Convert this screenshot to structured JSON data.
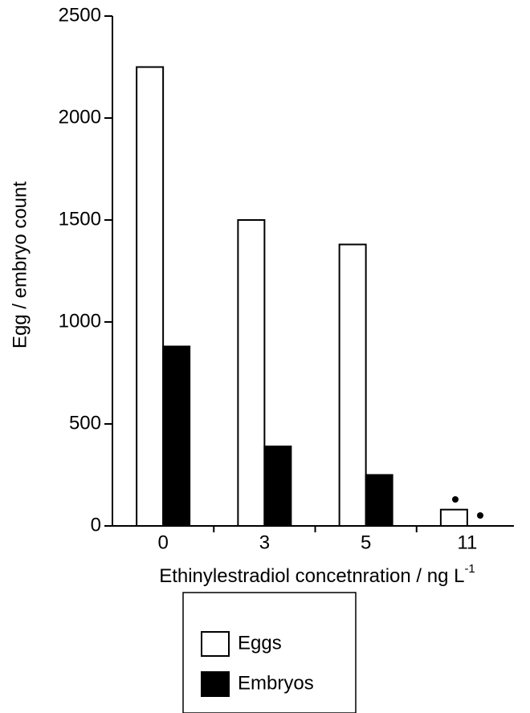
{
  "chart_data": {
    "type": "bar",
    "ylabel": "Egg / embryo count",
    "xlabel": "Ethinylestradiol concetnration / ng L",
    "xlabel_superscript": "-1",
    "categories": [
      "0",
      "3",
      "5",
      "11"
    ],
    "series": [
      {
        "name": "Eggs",
        "color": "#ffffff",
        "values": [
          2250,
          1500,
          1380,
          80
        ]
      },
      {
        "name": "Embryos",
        "color": "#000000",
        "values": [
          880,
          390,
          250,
          0
        ]
      }
    ],
    "ylim": [
      0,
      2500
    ],
    "yticks": [
      0,
      500,
      1000,
      1500,
      2000,
      2500
    ]
  }
}
